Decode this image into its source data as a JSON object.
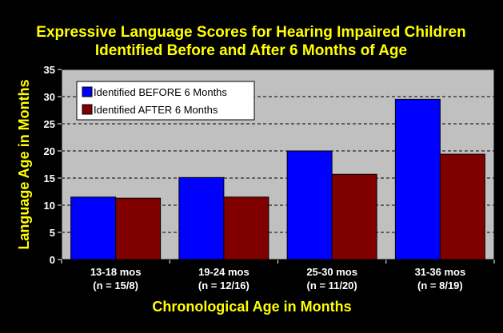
{
  "colors": {
    "background": "#000000",
    "plot_area": "#c0c0c0",
    "title": "#ffff00",
    "ticks": "#ffffff",
    "gridline": "#000000"
  },
  "chart_data": {
    "type": "bar",
    "title": [
      "Expressive Language Scores for Hearing Impaired Children",
      "Identified Before and After 6 Months of Age"
    ],
    "xlabel": "Chronological Age in Months",
    "ylabel": "Language Age in Months",
    "ylim": [
      0,
      35
    ],
    "yticks": [
      0,
      5,
      10,
      15,
      20,
      25,
      30,
      35
    ],
    "grid": "horizontal dashed",
    "legend_position": "top-left",
    "categories": [
      [
        "13-18 mos",
        "(n = 15/8)"
      ],
      [
        "19-24 mos",
        "(n = 12/16)"
      ],
      [
        "25-30 mos",
        "(n = 11/20)"
      ],
      [
        "31-36 mos",
        "(n = 8/19)"
      ]
    ],
    "series": [
      {
        "name": "Identified BEFORE 6 Months",
        "color": "#0000ff",
        "values": [
          11.5,
          15.1,
          20.0,
          29.5
        ]
      },
      {
        "name": "Identified AFTER 6 Months",
        "color": "#800000",
        "values": [
          11.3,
          11.5,
          15.7,
          19.4
        ]
      }
    ]
  }
}
